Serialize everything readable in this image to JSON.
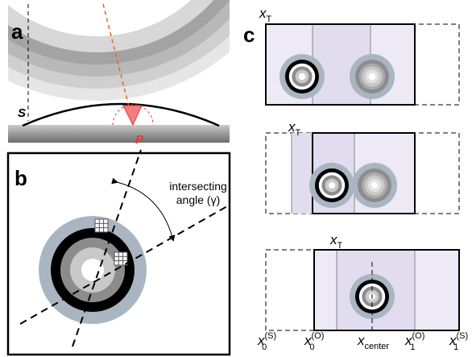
{
  "panel_a": {
    "label": "a",
    "s_label": "S",
    "p_label": "P"
  },
  "panel_b": {
    "label": "b",
    "annotation": [
      "intersecting",
      "angle (γ)"
    ]
  },
  "panel_c": {
    "label": "c",
    "xt_labels": [
      {
        "base": "x",
        "sub": "T"
      },
      {
        "base": "x",
        "sub": "T"
      },
      {
        "base": "x",
        "sub": "T"
      }
    ],
    "axis_labels": [
      {
        "base": "x",
        "sub": "0",
        "sup": "(S)"
      },
      {
        "base": "x",
        "sub": "0",
        "sup": "(O)"
      },
      {
        "base": "x",
        "sub": "center"
      },
      {
        "base": "x",
        "sub": "1",
        "sup": "(O)"
      },
      {
        "base": "x",
        "sub": "1",
        "sup": "(S)"
      }
    ]
  }
}
